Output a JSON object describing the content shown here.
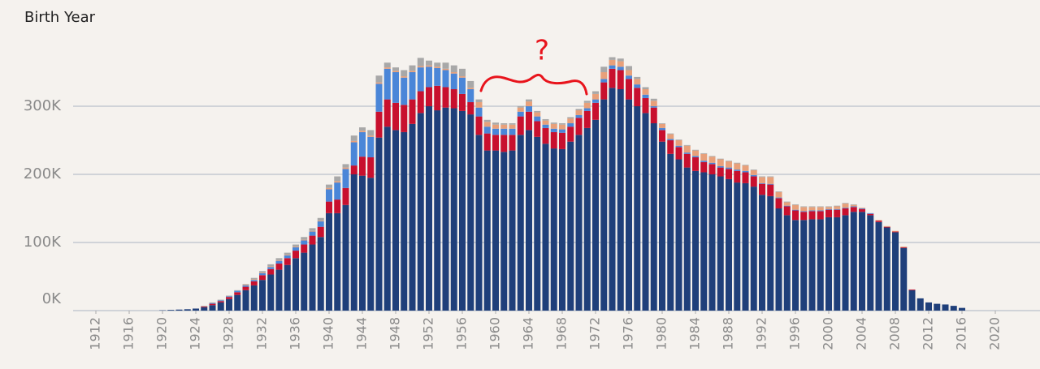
{
  "chart_data": {
    "type": "stacked_bar",
    "title": "Birth Year",
    "annotation": "?",
    "x": [
      1920,
      1921,
      1922,
      1923,
      1924,
      1925,
      1926,
      1927,
      1928,
      1929,
      1930,
      1931,
      1932,
      1933,
      1934,
      1935,
      1936,
      1937,
      1938,
      1939,
      1940,
      1941,
      1942,
      1943,
      1944,
      1945,
      1946,
      1947,
      1948,
      1949,
      1950,
      1951,
      1952,
      1953,
      1954,
      1955,
      1956,
      1957,
      1958,
      1959,
      1960,
      1961,
      1962,
      1963,
      1964,
      1965,
      1966,
      1967,
      1968,
      1969,
      1970,
      1971,
      1972,
      1973,
      1974,
      1975,
      1976,
      1977,
      1978,
      1979,
      1980,
      1981,
      1982,
      1983,
      1984,
      1985,
      1986,
      1987,
      1988,
      1989,
      1990,
      1991,
      1992,
      1993,
      1994,
      1995,
      1996,
      1997,
      1998,
      1999,
      2000,
      2001,
      2002,
      2003,
      2004,
      2005,
      2006,
      2007,
      2008,
      2009,
      2010,
      2011,
      2012,
      2013,
      2014,
      2015,
      2016
    ],
    "series": [
      {
        "color": "#1f3f7a",
        "values": [
          500,
          1000,
          1500,
          2000,
          3000,
          5000,
          8000,
          12000,
          17000,
          23000,
          30000,
          37000,
          45000,
          53000,
          60000,
          67000,
          77000,
          85000,
          97000,
          108000,
          143000,
          143000,
          155000,
          200000,
          198000,
          195000,
          254000,
          270000,
          265000,
          262000,
          274000,
          290000,
          300000,
          294000,
          298000,
          297000,
          293000,
          288000,
          258000,
          235000,
          235000,
          233000,
          235000,
          258000,
          265000,
          255000,
          245000,
          238000,
          237000,
          248000,
          258000,
          268000,
          280000,
          310000,
          327000,
          325000,
          310000,
          300000,
          290000,
          275000,
          248000,
          230000,
          222000,
          210000,
          205000,
          203000,
          200000,
          197000,
          193000,
          188000,
          187000,
          182000,
          170000,
          168000,
          150000,
          140000,
          133000,
          133000,
          134000,
          134000,
          137000,
          137000,
          140000,
          145000,
          145000,
          140000,
          130000,
          122000,
          115000,
          92000,
          30000,
          18000,
          12000,
          10000,
          9000,
          7000,
          4000
        ]
      },
      {
        "color": "#c8102e",
        "values": [
          0,
          0,
          0,
          0,
          0,
          1000,
          2000,
          2000,
          3000,
          4000,
          5000,
          6000,
          7000,
          8000,
          9000,
          10000,
          11000,
          12000,
          13000,
          15000,
          17000,
          20000,
          25000,
          13000,
          28000,
          30000,
          38000,
          40000,
          40000,
          40000,
          36000,
          32000,
          28000,
          36000,
          30000,
          28000,
          25000,
          18000,
          27000,
          25000,
          23000,
          25000,
          23000,
          27000,
          27000,
          23000,
          23000,
          24000,
          24000,
          22000,
          25000,
          25000,
          25000,
          25000,
          28000,
          28000,
          30000,
          27000,
          22000,
          23000,
          17000,
          20000,
          18000,
          20000,
          20000,
          15000,
          15000,
          13000,
          15000,
          17000,
          16000,
          15000,
          16000,
          17000,
          15000,
          13000,
          14000,
          12000,
          12000,
          12000,
          11000,
          11000,
          10000,
          7000,
          4000,
          2000,
          2000,
          1000,
          1000,
          1000,
          1000,
          0,
          0,
          0,
          0,
          0,
          0
        ]
      },
      {
        "color": "#4a86d8",
        "values": [
          0,
          0,
          0,
          0,
          0,
          0,
          1000,
          1000,
          1000,
          2000,
          2000,
          2000,
          3000,
          3000,
          4000,
          4000,
          5000,
          6000,
          6000,
          8000,
          18000,
          25000,
          28000,
          34000,
          36000,
          30000,
          41000,
          45000,
          45000,
          40000,
          40000,
          35000,
          30000,
          26000,
          25000,
          23000,
          24000,
          19000,
          13000,
          10000,
          9000,
          9000,
          9000,
          7000,
          8000,
          7000,
          5000,
          5000,
          5000,
          5000,
          4000,
          4000,
          5000,
          5000,
          5000,
          5000,
          5000,
          5000,
          5000,
          2000,
          3000,
          2000,
          2000,
          2000,
          2000,
          2000,
          2000,
          2000,
          2000,
          2000,
          2000,
          2000,
          1000,
          1000,
          1000,
          1000,
          1000,
          1000,
          1000,
          1000,
          1000,
          1000,
          1000,
          1000,
          1000,
          1000,
          0,
          0,
          0,
          0,
          0,
          0,
          0,
          0,
          0,
          0,
          0
        ]
      },
      {
        "color": "#e8a07a",
        "values": [
          0,
          0,
          0,
          0,
          0,
          0,
          0,
          0,
          0,
          0,
          1000,
          1000,
          1000,
          1000,
          1000,
          1000,
          1000,
          1000,
          1000,
          1000,
          2000,
          2000,
          2000,
          2000,
          2000,
          2000,
          2000,
          2000,
          2000,
          2000,
          2000,
          2000,
          2000,
          2000,
          2000,
          2000,
          2000,
          2000,
          8000,
          7000,
          6000,
          6000,
          6000,
          6000,
          7000,
          6000,
          6000,
          7000,
          7000,
          7000,
          7000,
          8000,
          8000,
          10000,
          8000,
          8000,
          8000,
          8000,
          8000,
          8000,
          6000,
          7000,
          8000,
          10000,
          8000,
          10000,
          9000,
          10000,
          9000,
          9000,
          8000,
          7000,
          9000,
          10000,
          8000,
          5000,
          7000,
          6000,
          5000,
          5000,
          3000,
          4000,
          6000,
          2000,
          1000,
          0,
          1000,
          1000,
          1000,
          1000,
          0,
          0,
          0,
          0,
          0,
          0,
          0
        ]
      },
      {
        "color": "#a8a8a8",
        "values": [
          0,
          0,
          0,
          0,
          0,
          1000,
          1000,
          1000,
          1000,
          1000,
          1000,
          2000,
          2000,
          3000,
          3000,
          3000,
          3000,
          4000,
          4000,
          4000,
          5000,
          7000,
          5000,
          8000,
          5000,
          8000,
          10000,
          7000,
          5000,
          9000,
          8000,
          12000,
          7000,
          6000,
          9000,
          10000,
          11000,
          10000,
          4000,
          3000,
          3000,
          2000,
          2000,
          2000,
          3000,
          2000,
          2000,
          2000,
          2000,
          2000,
          2000,
          3000,
          4000,
          8000,
          4000,
          4000,
          6000,
          3000,
          3000,
          3000,
          1000,
          1000,
          1000,
          1000,
          1000,
          1000,
          1000,
          1000,
          1000,
          1000,
          1000,
          1000,
          1000,
          1000,
          1000,
          1000,
          1000,
          1000,
          1000,
          1000,
          1000,
          1000,
          1000,
          1000,
          0,
          0,
          0,
          0,
          0,
          0,
          0,
          0,
          0,
          0,
          0,
          0,
          0
        ]
      }
    ],
    "xlim": [
      1910,
      2022
    ],
    "xticks": [
      1912,
      1916,
      1920,
      1924,
      1928,
      1932,
      1936,
      1940,
      1944,
      1948,
      1952,
      1956,
      1960,
      1964,
      1968,
      1972,
      1976,
      1980,
      1984,
      1988,
      1992,
      1996,
      2000,
      2004,
      2008,
      2012,
      2016,
      2020
    ],
    "ylim": [
      0,
      380000
    ],
    "yticks": [
      {
        "value": 0,
        "label": "0K"
      },
      {
        "value": 100000,
        "label": "100K"
      },
      {
        "value": 200000,
        "label": "200K"
      },
      {
        "value": 300000,
        "label": "300K"
      }
    ],
    "grid": true
  }
}
